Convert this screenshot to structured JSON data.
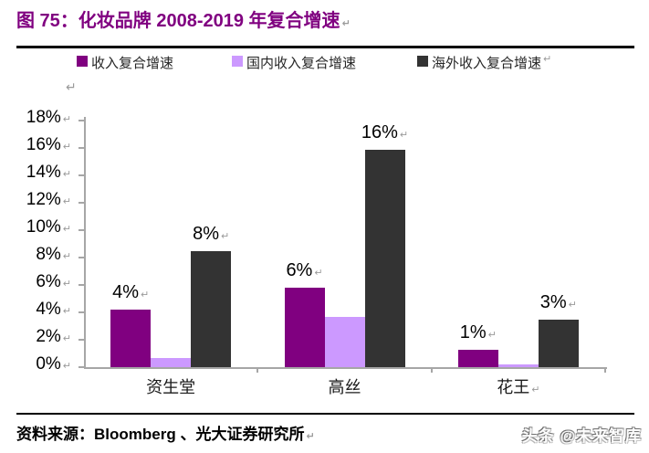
{
  "figure": {
    "title": "图 75：化妆品牌 2008-2019 年复合增速",
    "source": "资料来源：Bloomberg 、光大证券研究所",
    "watermark": "头条 @未来智库"
  },
  "marks": {
    "paragraph": "↵"
  },
  "legend": {
    "items": [
      {
        "label": "收入复合增速",
        "color": "#800080"
      },
      {
        "label": "国内收入复合增速",
        "color": "#CC99FF"
      },
      {
        "label": "海外收入复合增速",
        "color": "#333333"
      }
    ]
  },
  "chart_data": {
    "type": "bar",
    "title": "图 75：化妆品牌 2008-2019 年复合增速",
    "categories": [
      "资生堂",
      "高丝",
      "花王"
    ],
    "series": [
      {
        "name": "收入复合增速",
        "color": "#800080",
        "values": [
          4.2,
          5.8,
          1.3
        ],
        "data_labels": [
          "4%",
          "6%",
          "1%"
        ]
      },
      {
        "name": "国内收入复合增速",
        "color": "#CC99FF",
        "values": [
          0.7,
          3.7,
          0.2
        ],
        "data_labels": [
          null,
          null,
          null
        ]
      },
      {
        "name": "海外收入复合增速",
        "color": "#333333",
        "values": [
          8.5,
          15.9,
          3.5
        ],
        "data_labels": [
          "8%",
          "16%",
          "3%"
        ]
      }
    ],
    "xlabel": "",
    "ylabel": "",
    "ylim": [
      0,
      18
    ],
    "ytick_labels": [
      "0%",
      "2%",
      "4%",
      "6%",
      "8%",
      "10%",
      "12%",
      "14%",
      "16%",
      "18%"
    ],
    "grid": false,
    "legend_position": "top"
  }
}
